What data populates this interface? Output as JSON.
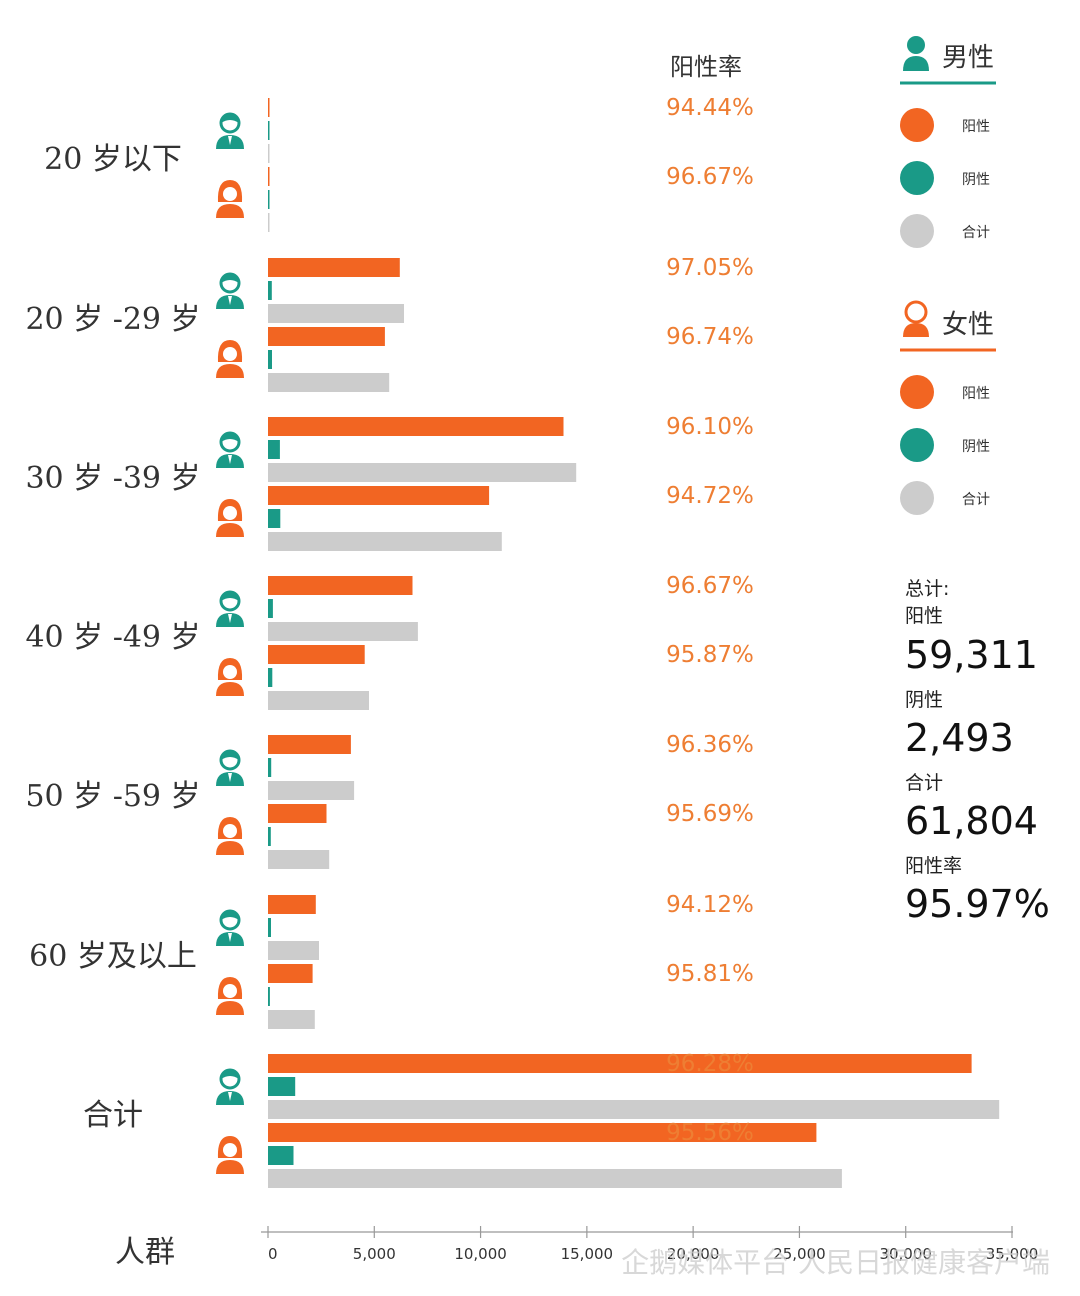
{
  "chart_data": {
    "type": "bar",
    "orientation": "horizontal",
    "categories": [
      "20 岁以下",
      "20 岁 -29 岁",
      "30 岁 -39 岁",
      "40 岁 -49 岁",
      "50 岁 -59 岁",
      "60 岁及以上",
      "合计"
    ],
    "subgroups": [
      "男性",
      "女性"
    ],
    "series": [
      {
        "name": "阳性",
        "color": "#f26522",
        "male": [
          17,
          6200,
          13900,
          6800,
          3900,
          2250,
          33100
        ],
        "female": [
          29,
          5500,
          10400,
          4550,
          2750,
          2100,
          25800
        ]
      },
      {
        "name": "阴性",
        "color": "#1a9a87",
        "male": [
          1,
          180,
          560,
          230,
          150,
          140,
          1280
        ],
        "female": [
          1,
          190,
          580,
          200,
          130,
          90,
          1200
        ]
      },
      {
        "name": "合计",
        "color": "#cccccc",
        "male": [
          18,
          6400,
          14500,
          7050,
          4050,
          2400,
          34400
        ],
        "female": [
          30,
          5700,
          11000,
          4750,
          2880,
          2200,
          27000
        ]
      }
    ],
    "positive_rate": {
      "male": [
        "94.44%",
        "97.05%",
        "96.10%",
        "96.67%",
        "96.36%",
        "94.12%",
        "96.28%"
      ],
      "female": [
        "96.67%",
        "96.74%",
        "94.72%",
        "95.87%",
        "95.69%",
        "95.81%",
        "95.56%"
      ]
    },
    "rate_header": "阳性率",
    "xlabel": "人群",
    "xlim": [
      0,
      35000
    ],
    "xticks": [
      "0",
      "5,000",
      "10,000",
      "15,000",
      "20,000",
      "25,000",
      "30,000",
      "35,000"
    ],
    "legend": {
      "placement": "right",
      "male_title": "男性",
      "female_title": "女性",
      "items": [
        "阳性",
        "阴性",
        "合计"
      ]
    },
    "summary": {
      "title": "总计:",
      "positive_label": "阳性",
      "positive_value": "59,311",
      "negative_label": "阴性",
      "negative_value": "2,493",
      "total_label": "合计",
      "total_value": "61,804",
      "rate_label": "阳性率",
      "rate_value": "95.97%"
    }
  },
  "colors": {
    "positive": "#f26522",
    "negative": "#1a9a87",
    "total": "#cccccc",
    "rate_text": "#ee7e33",
    "male_icon": "#1a9a87",
    "female_icon": "#f26522"
  },
  "icons": {
    "male": "male-person-icon",
    "female": "female-person-icon"
  },
  "watermark": "企鹅媒体平台 人民日报健康客户端"
}
